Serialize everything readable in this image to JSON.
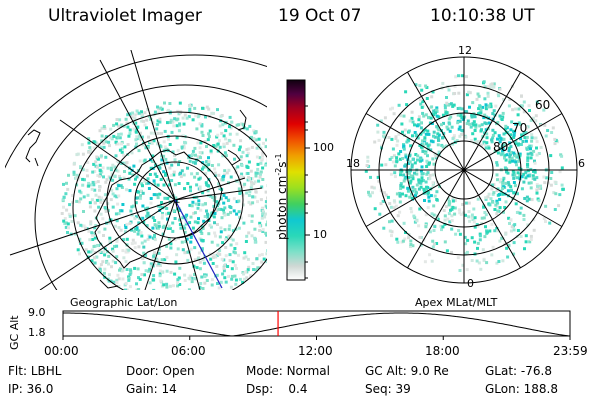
{
  "header": {
    "instrument": "Ultraviolet Imager",
    "date": "19 Oct 07",
    "time": "10:10:38 UT"
  },
  "left_panel": {
    "label": "Geographic Lat/Lon"
  },
  "right_panel": {
    "label": "Apex MLat/MLT",
    "mlt_labels": [
      "12",
      "18",
      "6",
      "0"
    ],
    "lat_labels": [
      "60",
      "70",
      "80"
    ]
  },
  "colorbar": {
    "unit_main": "photon cm",
    "sup1": "-2",
    "mid": "s",
    "sup2": "-1",
    "tick_labels": [
      "100",
      "10"
    ]
  },
  "altitude_plot": {
    "ylabel": "GC Alt",
    "ytick_labels": [
      "9.0",
      "1.8"
    ],
    "xtick_labels": [
      "00:00",
      "06:00",
      "12:00",
      "18:00",
      "23:59"
    ],
    "current_time_hours": 10.18
  },
  "footer": {
    "flt_label": "Flt:",
    "flt_value": "LBHL",
    "ip_label": "IP:",
    "ip_value": "36.0",
    "door_label": "Door:",
    "door_value": "Open",
    "gain_label": "Gain:",
    "gain_value": "14",
    "mode_label": "Mode:",
    "mode_value": "Normal",
    "dsp_label": "Dsp:",
    "dsp_value": "0.4",
    "gcalt_label": "GC Alt:",
    "gcalt_value": "9.0 Re",
    "seq_label": "Seq:",
    "seq_value": "39",
    "glat_label": "GLat:",
    "glat_value": "-76.8",
    "glon_label": "GLon:",
    "glon_value": "188.8"
  },
  "colors": {
    "scale": [
      "#ffffff",
      "#cfd8d4",
      "#7fe0c8",
      "#2ad8b8",
      "#10c8d0",
      "#40d060",
      "#9be020",
      "#e0e000",
      "#f0a000",
      "#f05000",
      "#e00000",
      "#a00020",
      "#500040",
      "#100010"
    ],
    "marker": "#ff0000"
  }
}
